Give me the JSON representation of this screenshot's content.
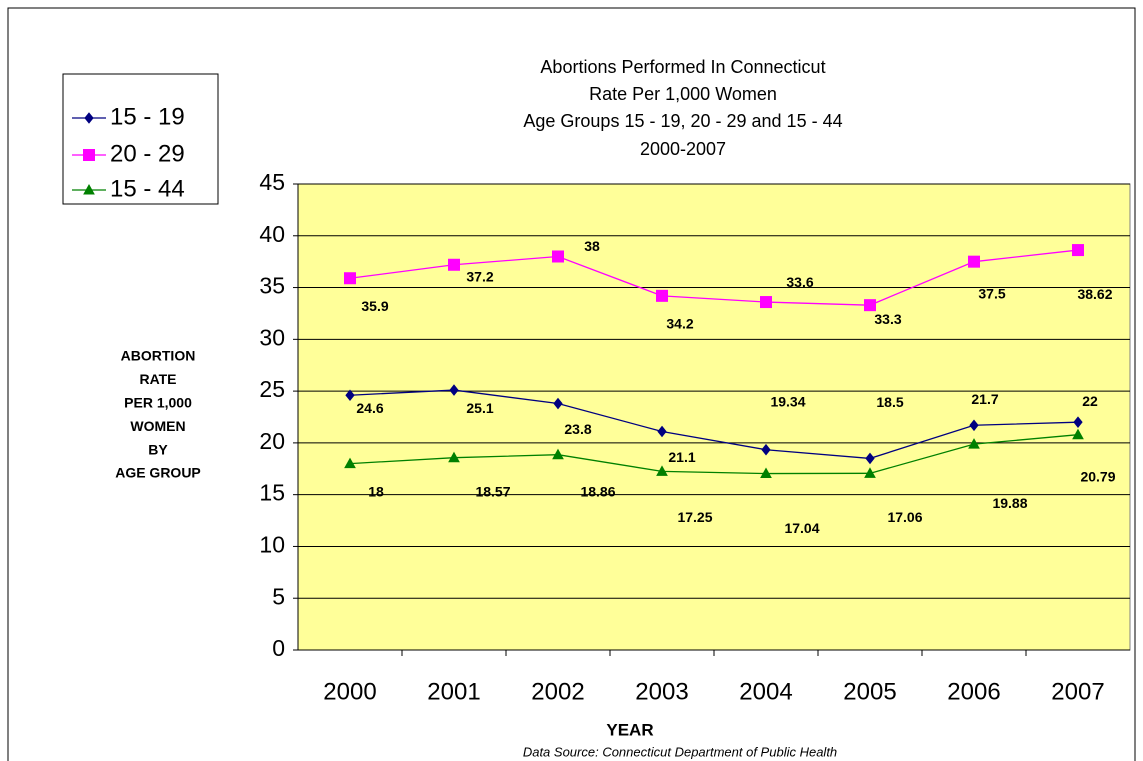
{
  "chart_data": {
    "type": "line",
    "title": [
      "Abortions Performed In Connecticut",
      "Rate Per 1,000 Women",
      "Age Groups 15 - 19, 20 - 29 and 15 - 44",
      "2000-2007"
    ],
    "y_label": [
      "ABORTION",
      "RATE",
      "PER 1,000",
      "WOMEN",
      "BY",
      "AGE GROUP"
    ],
    "x_label": "YEAR",
    "source": "Data Source: Connecticut Department of Public Health",
    "categories": [
      "2000",
      "2001",
      "2002",
      "2003",
      "2004",
      "2005",
      "2006",
      "2007"
    ],
    "series": [
      {
        "name": "15 - 19",
        "color": "#000080",
        "marker": "diamond",
        "values": [
          24.6,
          25.1,
          23.8,
          21.1,
          19.34,
          18.5,
          21.7,
          22
        ]
      },
      {
        "name": "20 - 29",
        "color": "#ff00ff",
        "marker": "square",
        "values": [
          35.9,
          37.2,
          38,
          34.2,
          33.6,
          33.3,
          37.5,
          38.62
        ]
      },
      {
        "name": "15 - 44",
        "color": "#008000",
        "marker": "triangle",
        "values": [
          18,
          18.57,
          18.86,
          17.25,
          17.04,
          17.06,
          19.88,
          20.79
        ]
      }
    ],
    "ylim": [
      0,
      45
    ],
    "yticks": [
      0,
      5,
      10,
      15,
      20,
      25,
      30,
      35,
      40,
      45
    ],
    "grid": true,
    "legend": "left"
  }
}
